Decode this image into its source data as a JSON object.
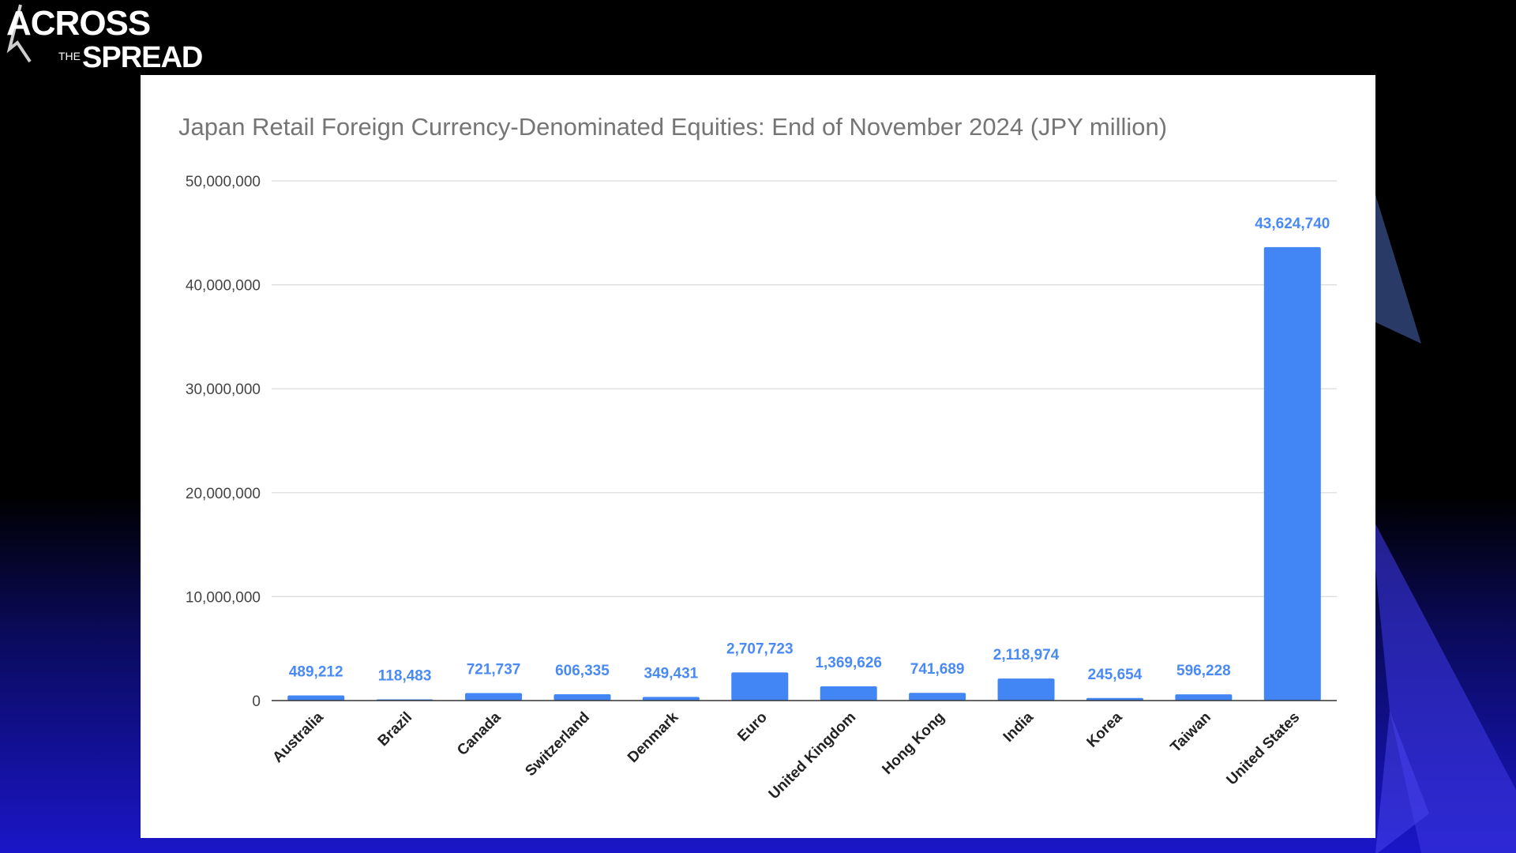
{
  "logo": {
    "line1": "ACROSS",
    "line2_small": "THE",
    "line2_big": "SPREAD"
  },
  "colors": {
    "bar": "#4285f4",
    "data_label": "#4a8af4",
    "panel": "#ffffff"
  },
  "chart_data": {
    "type": "bar",
    "title": "Japan Retail Foreign Currency-Denominated Equities: End of November 2024 (JPY million)",
    "xlabel": "",
    "ylabel": "",
    "categories": [
      "Australia",
      "Brazil",
      "Canada",
      "Switzerland",
      "Denmark",
      "Euro",
      "United Kingdom",
      "Hong Kong",
      "India",
      "Korea",
      "Taiwan",
      "United States"
    ],
    "values": [
      489212,
      118483,
      721737,
      606335,
      349431,
      2707723,
      1369626,
      741689,
      2118974,
      245654,
      596228,
      43624740
    ],
    "data_labels": [
      "489,212",
      "118,483",
      "721,737",
      "606,335",
      "349,431",
      "2,707,723",
      "1,369,626",
      "741,689",
      "2,118,974",
      "245,654",
      "596,228",
      "43,624,740"
    ],
    "ylim": [
      0,
      50000000
    ],
    "yticks": [
      0,
      10000000,
      20000000,
      30000000,
      40000000,
      50000000
    ],
    "ytick_labels": [
      "0",
      "10,000,000",
      "20,000,000",
      "30,000,000",
      "40,000,000",
      "50,000,000"
    ],
    "grid": true,
    "legend": "none"
  }
}
